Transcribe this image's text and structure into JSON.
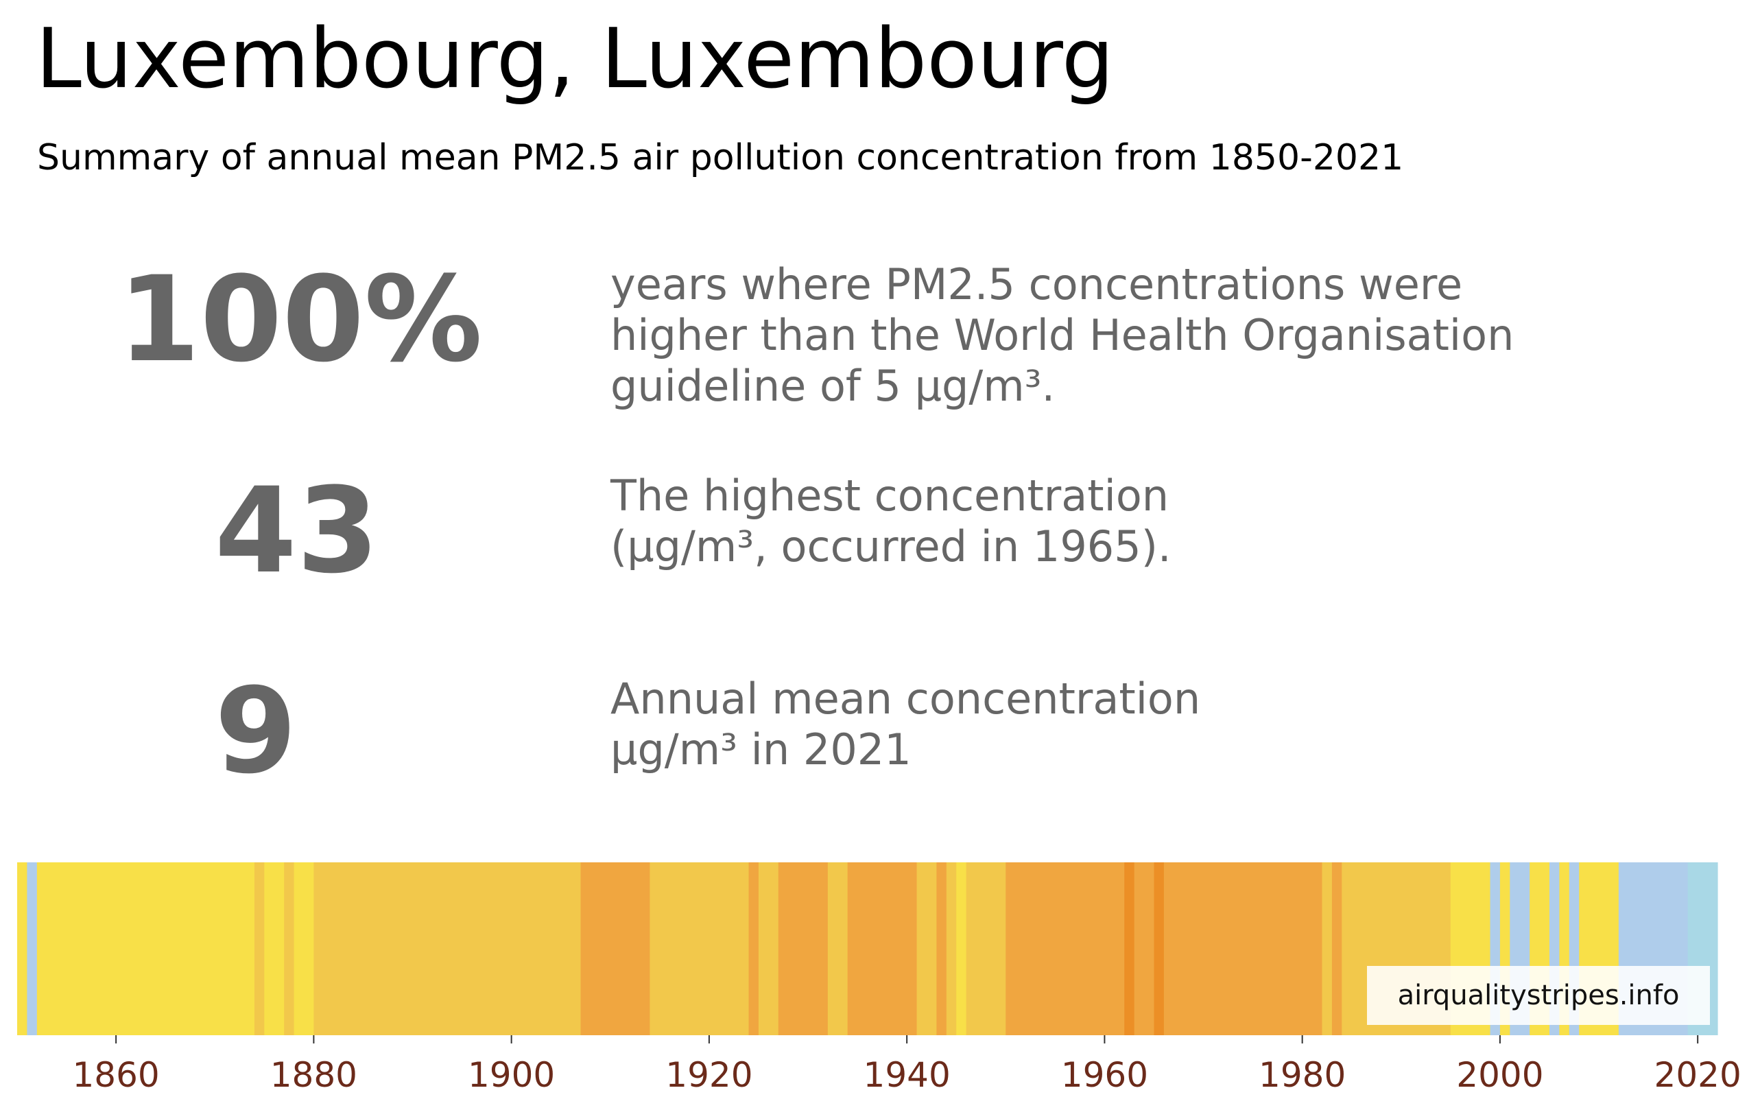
{
  "title": "Luxembourg, Luxembourg",
  "subtitle": "Summary of annual mean PM2.5 air pollution concentration from 1850-2021",
  "stats": [
    {
      "value": "100%",
      "lines": [
        "years where PM2.5 concentrations were",
        "higher than the World Health Organisation",
        "guideline of 5 µg/m³."
      ]
    },
    {
      "value": "43",
      "lines": [
        "The highest concentration",
        "(µg/m³, occurred in 1965)."
      ]
    },
    {
      "value": "9",
      "lines": [
        "Annual mean concentration",
        "µg/m³ in 2021"
      ]
    }
  ],
  "watermark": "airqualitystripes.info",
  "colors": {
    "stat_text": "#666666",
    "tick_label": "#6b2a1a",
    "level_1": "#a9d8e6",
    "level_2": "#afcdeb",
    "level_3": "#f8e048",
    "level_4": "#f2c84b",
    "level_5": "#f0a640",
    "level_6": "#ec8f26"
  },
  "chart_data": {
    "type": "heatmap",
    "xlim": [
      1850,
      2022
    ],
    "x_ticks": [
      1860,
      1880,
      1900,
      1920,
      1940,
      1960,
      1980,
      2000,
      2020
    ],
    "stripes": [
      {
        "from": 1850,
        "to": 1851,
        "level": 3
      },
      {
        "from": 1851,
        "to": 1852,
        "level": 2
      },
      {
        "from": 1852,
        "to": 1874,
        "level": 3
      },
      {
        "from": 1874,
        "to": 1875,
        "level": 4
      },
      {
        "from": 1875,
        "to": 1877,
        "level": 3
      },
      {
        "from": 1877,
        "to": 1878,
        "level": 4
      },
      {
        "from": 1878,
        "to": 1880,
        "level": 3
      },
      {
        "from": 1880,
        "to": 1907,
        "level": 4
      },
      {
        "from": 1907,
        "to": 1914,
        "level": 5
      },
      {
        "from": 1914,
        "to": 1924,
        "level": 4
      },
      {
        "from": 1924,
        "to": 1925,
        "level": 5
      },
      {
        "from": 1925,
        "to": 1927,
        "level": 4
      },
      {
        "from": 1927,
        "to": 1932,
        "level": 5
      },
      {
        "from": 1932,
        "to": 1934,
        "level": 4
      },
      {
        "from": 1934,
        "to": 1941,
        "level": 5
      },
      {
        "from": 1941,
        "to": 1943,
        "level": 4
      },
      {
        "from": 1943,
        "to": 1944,
        "level": 5
      },
      {
        "from": 1944,
        "to": 1945,
        "level": 4
      },
      {
        "from": 1945,
        "to": 1946,
        "level": 3
      },
      {
        "from": 1946,
        "to": 1950,
        "level": 4
      },
      {
        "from": 1950,
        "to": 1962,
        "level": 5
      },
      {
        "from": 1962,
        "to": 1963,
        "level": 6
      },
      {
        "from": 1963,
        "to": 1965,
        "level": 5
      },
      {
        "from": 1965,
        "to": 1966,
        "level": 6
      },
      {
        "from": 1966,
        "to": 1982,
        "level": 5
      },
      {
        "from": 1982,
        "to": 1983,
        "level": 4
      },
      {
        "from": 1983,
        "to": 1984,
        "level": 5
      },
      {
        "from": 1984,
        "to": 1995,
        "level": 4
      },
      {
        "from": 1995,
        "to": 1999,
        "level": 3
      },
      {
        "from": 1999,
        "to": 2000,
        "level": 2
      },
      {
        "from": 2000,
        "to": 2001,
        "level": 3
      },
      {
        "from": 2001,
        "to": 2003,
        "level": 2
      },
      {
        "from": 2003,
        "to": 2005,
        "level": 3
      },
      {
        "from": 2005,
        "to": 2006,
        "level": 2
      },
      {
        "from": 2006,
        "to": 2007,
        "level": 3
      },
      {
        "from": 2007,
        "to": 2008,
        "level": 2
      },
      {
        "from": 2008,
        "to": 2012,
        "level": 3
      },
      {
        "from": 2012,
        "to": 2019,
        "level": 2
      },
      {
        "from": 2019,
        "to": 2022,
        "level": 1
      }
    ]
  }
}
